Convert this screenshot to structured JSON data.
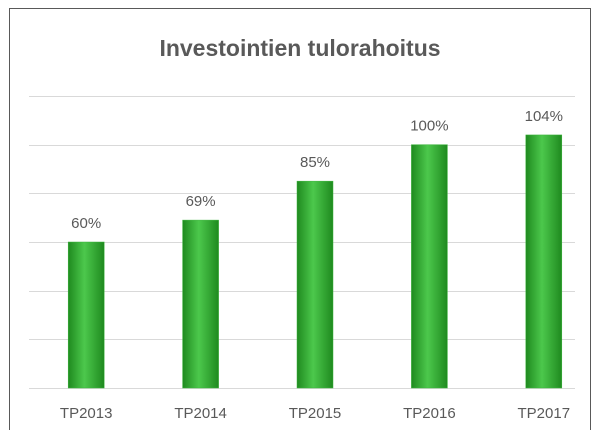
{
  "chart_data": {
    "type": "bar",
    "title": "Investointien tulorahoitus",
    "categories": [
      "TP2013",
      "TP2014",
      "TP2015",
      "TP2016",
      "TP2017"
    ],
    "values": [
      60,
      69,
      85,
      100,
      104
    ],
    "value_labels": [
      "60%",
      "69%",
      "85%",
      "100%",
      "104%"
    ],
    "color": "#3cb43c",
    "ylim": [
      0,
      120
    ],
    "yticks": [
      0,
      20,
      40,
      60,
      80,
      100,
      120
    ],
    "grid": true
  }
}
